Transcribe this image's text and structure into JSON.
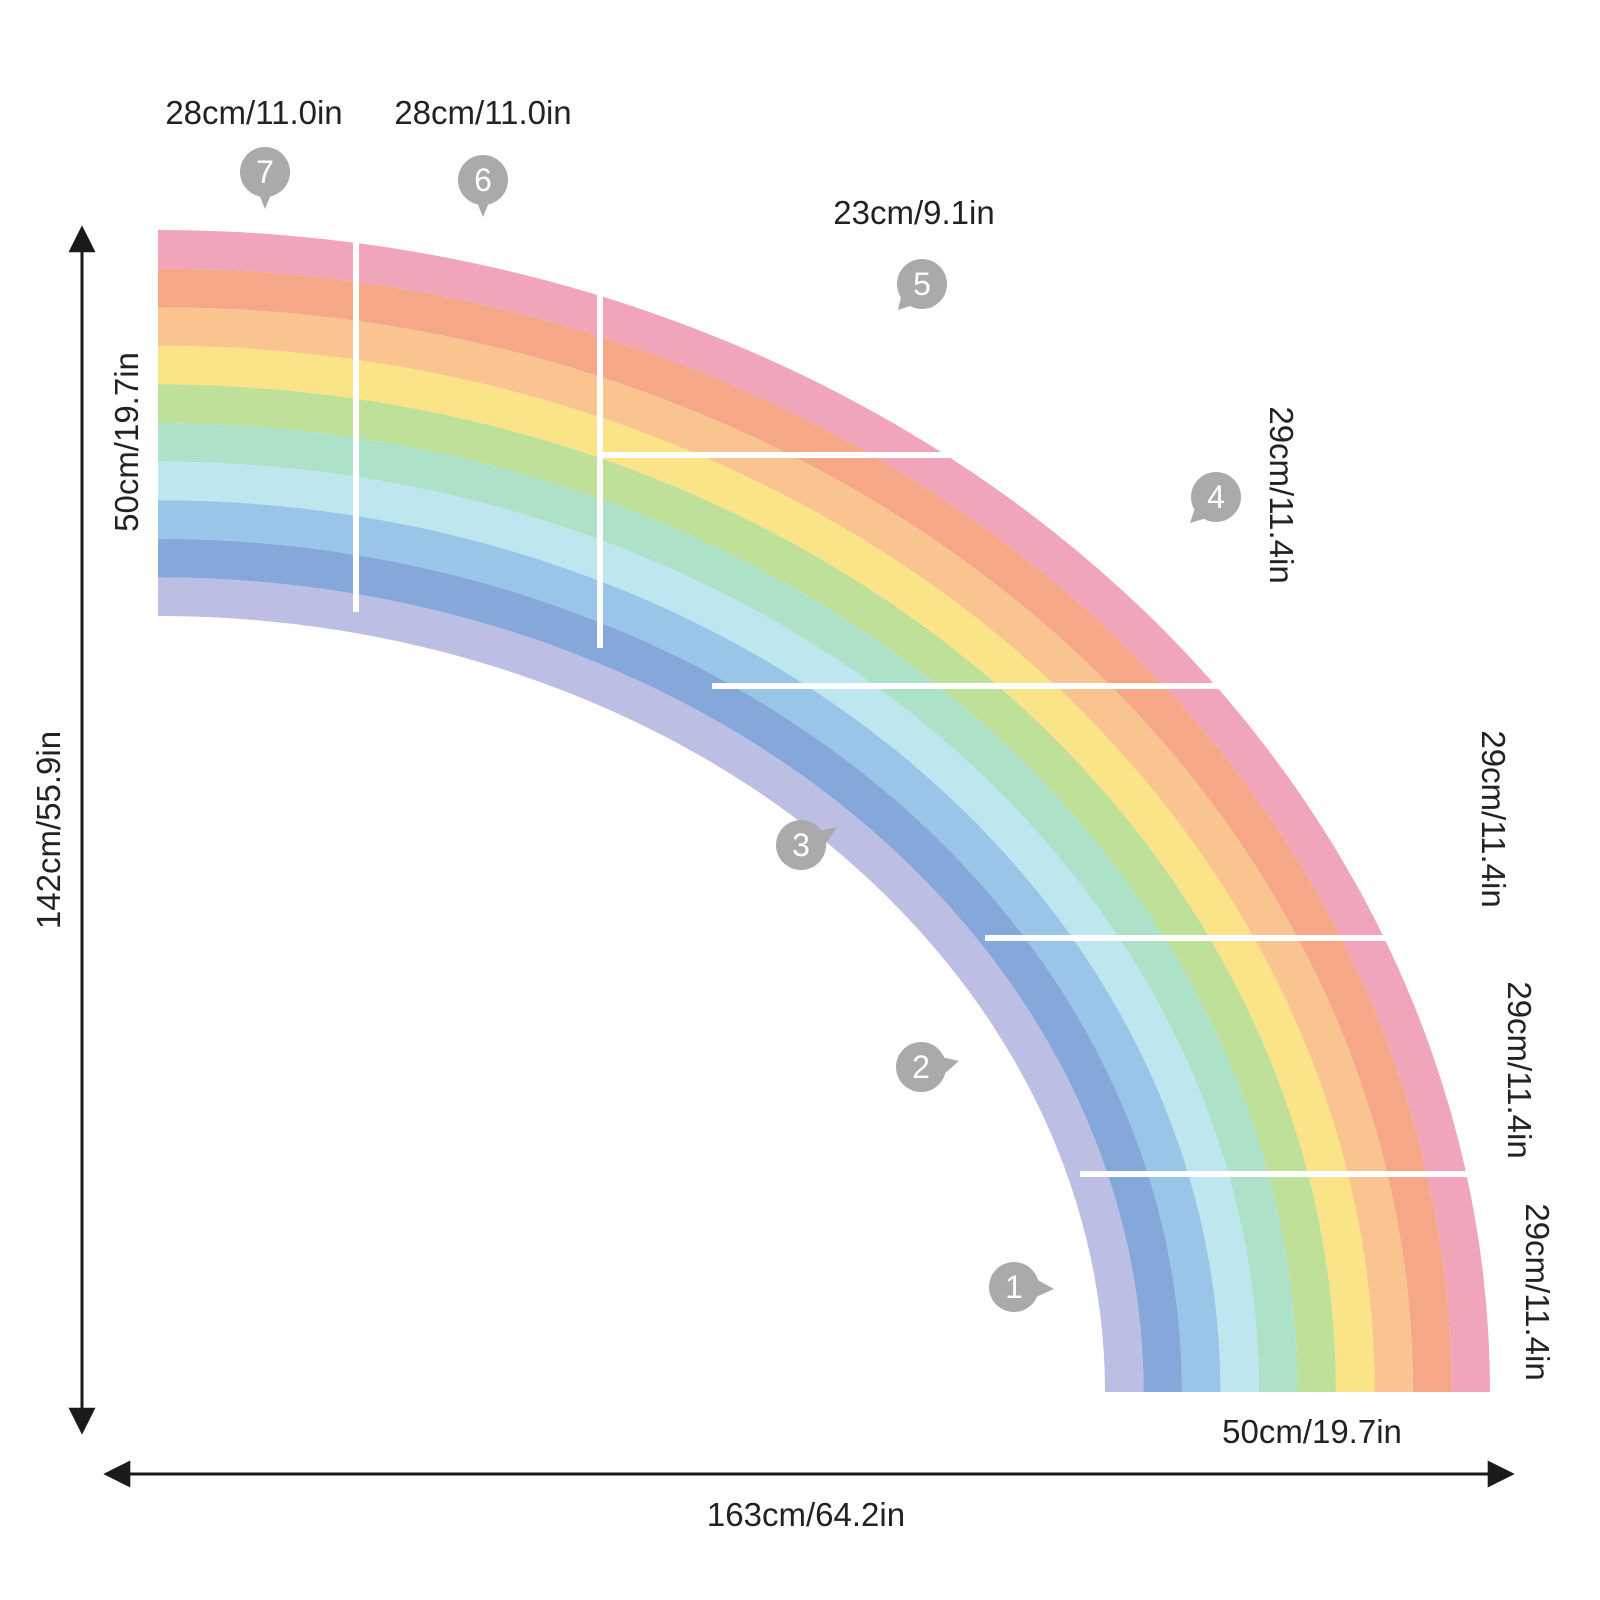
{
  "diagram": {
    "dimensions": {
      "total_height": "142cm/55.9in",
      "total_width": "163cm/64.2in",
      "left_band_width": "50cm/19.7in",
      "bottom_band_width": "50cm/19.7in",
      "piece7_width": "28cm/11.0in",
      "piece6_width": "28cm/11.0in",
      "piece5_width": "23cm/9.1in",
      "piece4_height": "29cm/11.4in",
      "piece3_height": "29cm/11.4in",
      "piece2_height": "29cm/11.4in",
      "piece1_height": "29cm/11.4in"
    },
    "pieces": [
      {
        "number": "1"
      },
      {
        "number": "2"
      },
      {
        "number": "3"
      },
      {
        "number": "4"
      },
      {
        "number": "5"
      },
      {
        "number": "6"
      },
      {
        "number": "7"
      }
    ],
    "colors": {
      "stripes": [
        "#f09db4",
        "#f5a07e",
        "#f9bf86",
        "#fbe27e",
        "#b9dd8f",
        "#a6dfc4",
        "#b9e4ee",
        "#8fc0e6",
        "#7c9fd6",
        "#b7b8e2"
      ],
      "badge": "#aaaaaa",
      "arrow": "#1a1a1a",
      "seam": "#ffffff"
    }
  }
}
